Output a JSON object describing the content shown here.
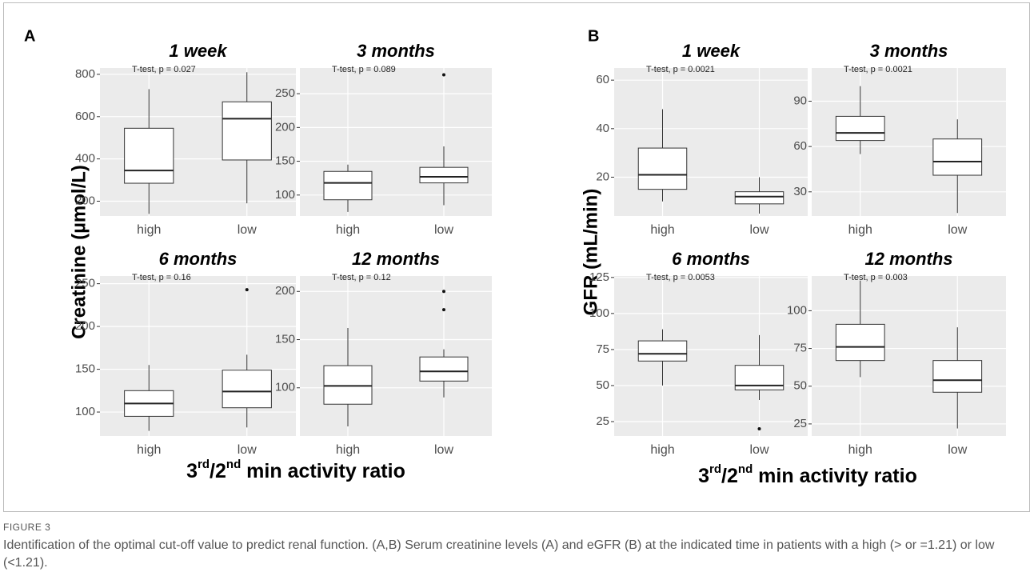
{
  "figure": {
    "groups": [
      {
        "letter": "A",
        "y_label": "Creatinine (µmol/L)",
        "x_label": [
          "3",
          "rd",
          "/2",
          "nd",
          " min activity ratio"
        ]
      },
      {
        "letter": "B",
        "y_label": "GFR (mL/min)",
        "x_label": [
          "3",
          "rd",
          "/2",
          "nd",
          " min activity ratio"
        ]
      }
    ],
    "caption_label": "FIGURE 3",
    "caption": "Identification of the optimal cut-off value to predict renal function. (A,B) Serum creatinine levels (A) and eGFR (B) at the indicated time in patients with a high (> or =1.21) or low (<1.21)."
  },
  "chart_data": [
    {
      "type": "box",
      "title": "1 week",
      "annotation": "T-test, p = 0.027",
      "categories": [
        "high",
        "low"
      ],
      "boxes": [
        {
          "whisker_low": 140,
          "q1": 285,
          "median": 345,
          "q3": 545,
          "whisker_high": 730,
          "outliers": []
        },
        {
          "whisker_low": 190,
          "q1": 395,
          "median": 590,
          "q3": 670,
          "whisker_high": 810,
          "outliers": []
        }
      ],
      "ylim": [
        130,
        830
      ],
      "yticks": [
        200,
        400,
        600,
        800
      ]
    },
    {
      "type": "box",
      "title": "3 months",
      "annotation": "T-test, p = 0.089",
      "categories": [
        "high",
        "low"
      ],
      "boxes": [
        {
          "whisker_low": 75,
          "q1": 93,
          "median": 118,
          "q3": 135,
          "whisker_high": 145,
          "outliers": []
        },
        {
          "whisker_low": 85,
          "q1": 118,
          "median": 127,
          "q3": 141,
          "whisker_high": 172,
          "outliers": [
            278
          ]
        }
      ],
      "ylim": [
        69,
        288
      ],
      "yticks": [
        100,
        150,
        200,
        250
      ]
    },
    {
      "type": "box",
      "title": "6 months",
      "annotation": "T-test, p = 0.16",
      "categories": [
        "high",
        "low"
      ],
      "boxes": [
        {
          "whisker_low": 78,
          "q1": 95,
          "median": 110,
          "q3": 125,
          "whisker_high": 155,
          "outliers": []
        },
        {
          "whisker_low": 82,
          "q1": 105,
          "median": 124,
          "q3": 149,
          "whisker_high": 167,
          "outliers": [
            243
          ]
        }
      ],
      "ylim": [
        72,
        259
      ],
      "yticks": [
        100,
        150,
        200,
        250
      ]
    },
    {
      "type": "box",
      "title": "12 months",
      "annotation": "T-test, p = 0.12",
      "categories": [
        "high",
        "low"
      ],
      "boxes": [
        {
          "whisker_low": 60,
          "q1": 83,
          "median": 102,
          "q3": 123,
          "whisker_high": 162,
          "outliers": []
        },
        {
          "whisker_low": 90,
          "q1": 107,
          "median": 117,
          "q3": 132,
          "whisker_high": 140,
          "outliers": [
            181,
            200
          ]
        }
      ],
      "ylim": [
        50,
        216
      ],
      "yticks": [
        100,
        150,
        200
      ]
    },
    {
      "type": "box",
      "title": "1 week",
      "annotation": "T-test, p = 0.0021",
      "categories": [
        "high",
        "low"
      ],
      "boxes": [
        {
          "whisker_low": 10,
          "q1": 15,
          "median": 21,
          "q3": 32,
          "whisker_high": 48,
          "outliers": []
        },
        {
          "whisker_low": 5,
          "q1": 9,
          "median": 12,
          "q3": 14,
          "whisker_high": 20,
          "outliers": []
        }
      ],
      "ylim": [
        4,
        65
      ],
      "yticks": [
        20,
        40,
        60
      ]
    },
    {
      "type": "box",
      "title": "3 months",
      "annotation": "T-test, p = 0.0021",
      "categories": [
        "high",
        "low"
      ],
      "boxes": [
        {
          "whisker_low": 55,
          "q1": 64,
          "median": 69,
          "q3": 80,
          "whisker_high": 100,
          "outliers": []
        },
        {
          "whisker_low": 16,
          "q1": 41,
          "median": 50,
          "q3": 65,
          "whisker_high": 78,
          "outliers": []
        }
      ],
      "ylim": [
        14,
        112
      ],
      "yticks": [
        30,
        60,
        90
      ]
    },
    {
      "type": "box",
      "title": "6 months",
      "annotation": "T-test, p = 0.0053",
      "categories": [
        "high",
        "low"
      ],
      "boxes": [
        {
          "whisker_low": 50,
          "q1": 67,
          "median": 72,
          "q3": 81,
          "whisker_high": 89,
          "outliers": []
        },
        {
          "whisker_low": 40,
          "q1": 47,
          "median": 50,
          "q3": 64,
          "whisker_high": 85,
          "outliers": [
            20
          ]
        }
      ],
      "ylim": [
        15,
        126
      ],
      "yticks": [
        25,
        50,
        75,
        100,
        125
      ]
    },
    {
      "type": "box",
      "title": "12 months",
      "annotation": "T-test, p = 0.003",
      "categories": [
        "high",
        "low"
      ],
      "boxes": [
        {
          "whisker_low": 56,
          "q1": 67,
          "median": 76,
          "q3": 91,
          "whisker_high": 120,
          "outliers": []
        },
        {
          "whisker_low": 22,
          "q1": 46,
          "median": 54,
          "q3": 67,
          "whisker_high": 89,
          "outliers": []
        }
      ],
      "ylim": [
        17,
        123
      ],
      "yticks": [
        25,
        50,
        75,
        100
      ]
    }
  ]
}
